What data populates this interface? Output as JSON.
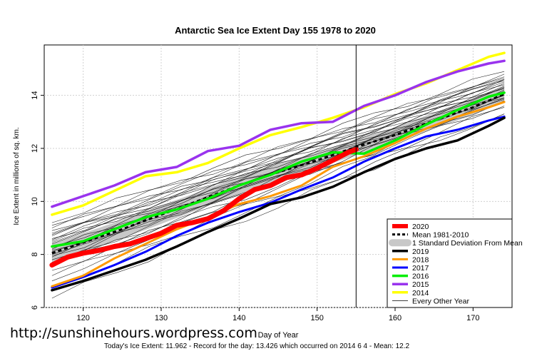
{
  "chart_data": {
    "type": "line",
    "title": "Antarctic Sea Ice Extent Day 155 1978 to 2020",
    "xlabel": "Day of Year",
    "ylabel": "Ice Extent in millions of sq. km.",
    "footer": "Today's Ice Extent: 11.962  - Record for the day: 13.426 which occurred on 2014 6 4  - Mean: 12.2",
    "xlim": [
      115,
      175
    ],
    "ylim": [
      6,
      15.9
    ],
    "x_ticks": [
      120,
      130,
      140,
      150,
      160,
      170
    ],
    "y_ticks": [
      6,
      8,
      10,
      12,
      14
    ],
    "current_day": 155,
    "grid": true,
    "legend_position": "bottom-right",
    "mean_band": {
      "name": "Mean 1981-2010",
      "band_name": "1 Standard Deviation From Mean",
      "x": [
        116,
        120,
        125,
        130,
        135,
        140,
        145,
        150,
        155,
        160,
        165,
        170,
        174
      ],
      "mean": [
        8.05,
        8.45,
        8.95,
        9.5,
        10.05,
        10.6,
        11.1,
        11.55,
        12.05,
        12.5,
        13.05,
        13.55,
        14.05
      ],
      "sd": [
        0.35,
        0.35,
        0.35,
        0.35,
        0.33,
        0.33,
        0.33,
        0.3,
        0.3,
        0.3,
        0.3,
        0.3,
        0.3
      ]
    },
    "series": [
      {
        "name": "2020",
        "color": "#ff0000",
        "width": 7,
        "x": [
          116,
          118,
          120,
          122,
          124,
          126,
          128,
          130,
          132,
          134,
          136,
          138,
          140,
          142,
          144,
          146,
          148,
          150,
          152,
          154,
          155
        ],
        "values": [
          7.6,
          7.9,
          8.05,
          8.15,
          8.3,
          8.4,
          8.6,
          8.8,
          9.1,
          9.2,
          9.35,
          9.65,
          10.1,
          10.45,
          10.6,
          10.9,
          11.0,
          11.25,
          11.55,
          11.85,
          11.96
        ]
      },
      {
        "name": "2019",
        "color": "#000000",
        "width": 3.5,
        "x": [
          116,
          120,
          124,
          128,
          132,
          136,
          140,
          144,
          148,
          152,
          156,
          160,
          164,
          168,
          172,
          174
        ],
        "values": [
          6.65,
          7.0,
          7.4,
          7.8,
          8.3,
          8.85,
          9.35,
          9.9,
          10.15,
          10.55,
          11.1,
          11.6,
          12.0,
          12.3,
          12.85,
          13.15
        ]
      },
      {
        "name": "2018",
        "color": "#ff9900",
        "width": 3,
        "x": [
          116,
          120,
          124,
          128,
          132,
          136,
          140,
          144,
          148,
          152,
          156,
          160,
          164,
          168,
          172,
          174
        ],
        "values": [
          6.8,
          7.2,
          7.85,
          8.4,
          8.95,
          9.4,
          9.9,
          10.2,
          10.6,
          11.3,
          11.7,
          12.2,
          12.75,
          13.2,
          13.55,
          13.75
        ]
      },
      {
        "name": "2017",
        "color": "#0000ff",
        "width": 3,
        "x": [
          116,
          120,
          124,
          128,
          132,
          136,
          140,
          144,
          148,
          152,
          156,
          160,
          164,
          168,
          172,
          174
        ],
        "values": [
          6.75,
          7.15,
          7.6,
          8.1,
          8.7,
          9.2,
          9.6,
          9.95,
          10.45,
          10.9,
          11.5,
          12.0,
          12.45,
          12.7,
          13.05,
          13.2
        ]
      },
      {
        "name": "2016",
        "color": "#00ee00",
        "width": 3.5,
        "x": [
          116,
          120,
          124,
          128,
          132,
          136,
          140,
          144,
          148,
          152,
          156,
          160,
          164,
          168,
          172,
          174
        ],
        "values": [
          8.3,
          8.5,
          8.95,
          9.4,
          9.7,
          10.1,
          10.6,
          11.0,
          11.5,
          11.85,
          11.8,
          12.3,
          12.9,
          13.45,
          13.95,
          14.1
        ]
      },
      {
        "name": "2015",
        "color": "#9933ee",
        "width": 3.5,
        "x": [
          116,
          120,
          124,
          128,
          132,
          136,
          140,
          144,
          148,
          152,
          156,
          160,
          164,
          168,
          172,
          174
        ],
        "values": [
          9.8,
          10.2,
          10.6,
          11.1,
          11.3,
          11.9,
          12.1,
          12.7,
          12.95,
          13.0,
          13.6,
          14.0,
          14.5,
          14.9,
          15.2,
          15.3
        ]
      },
      {
        "name": "2014",
        "color": "#ffff00",
        "width": 3.5,
        "x": [
          116,
          120,
          124,
          128,
          132,
          136,
          140,
          144,
          148,
          152,
          156,
          160,
          164,
          168,
          172,
          174
        ],
        "values": [
          9.5,
          9.85,
          10.4,
          10.95,
          11.1,
          11.45,
          12.0,
          12.5,
          12.8,
          13.15,
          13.55,
          14.05,
          14.45,
          14.95,
          15.45,
          15.6
        ]
      }
    ],
    "other_years": {
      "name": "Every Other Year",
      "color": "#000000",
      "x": [
        116,
        174
      ],
      "values": [
        [
          6.35,
          13.3
        ],
        [
          6.8,
          13.3
        ],
        [
          7.0,
          13.55
        ],
        [
          7.2,
          13.8
        ],
        [
          7.4,
          13.9
        ],
        [
          7.55,
          14.0
        ],
        [
          7.7,
          14.05
        ],
        [
          7.8,
          14.1
        ],
        [
          7.9,
          14.15
        ],
        [
          8.0,
          14.2
        ],
        [
          8.1,
          14.25
        ],
        [
          8.2,
          14.3
        ],
        [
          8.3,
          14.35
        ],
        [
          8.4,
          14.4
        ],
        [
          8.5,
          14.45
        ],
        [
          8.6,
          14.5
        ],
        [
          8.7,
          14.55
        ],
        [
          8.8,
          14.6
        ],
        [
          8.9,
          14.65
        ],
        [
          9.0,
          14.7
        ],
        [
          9.1,
          14.8
        ],
        [
          9.2,
          14.9
        ],
        [
          7.6,
          13.6
        ],
        [
          8.15,
          14.0
        ],
        [
          8.45,
          13.9
        ],
        [
          8.75,
          14.3
        ],
        [
          7.95,
          13.85
        ],
        [
          8.55,
          14.6
        ]
      ]
    }
  },
  "watermark": "http://sunshinehours.wordpress.com"
}
